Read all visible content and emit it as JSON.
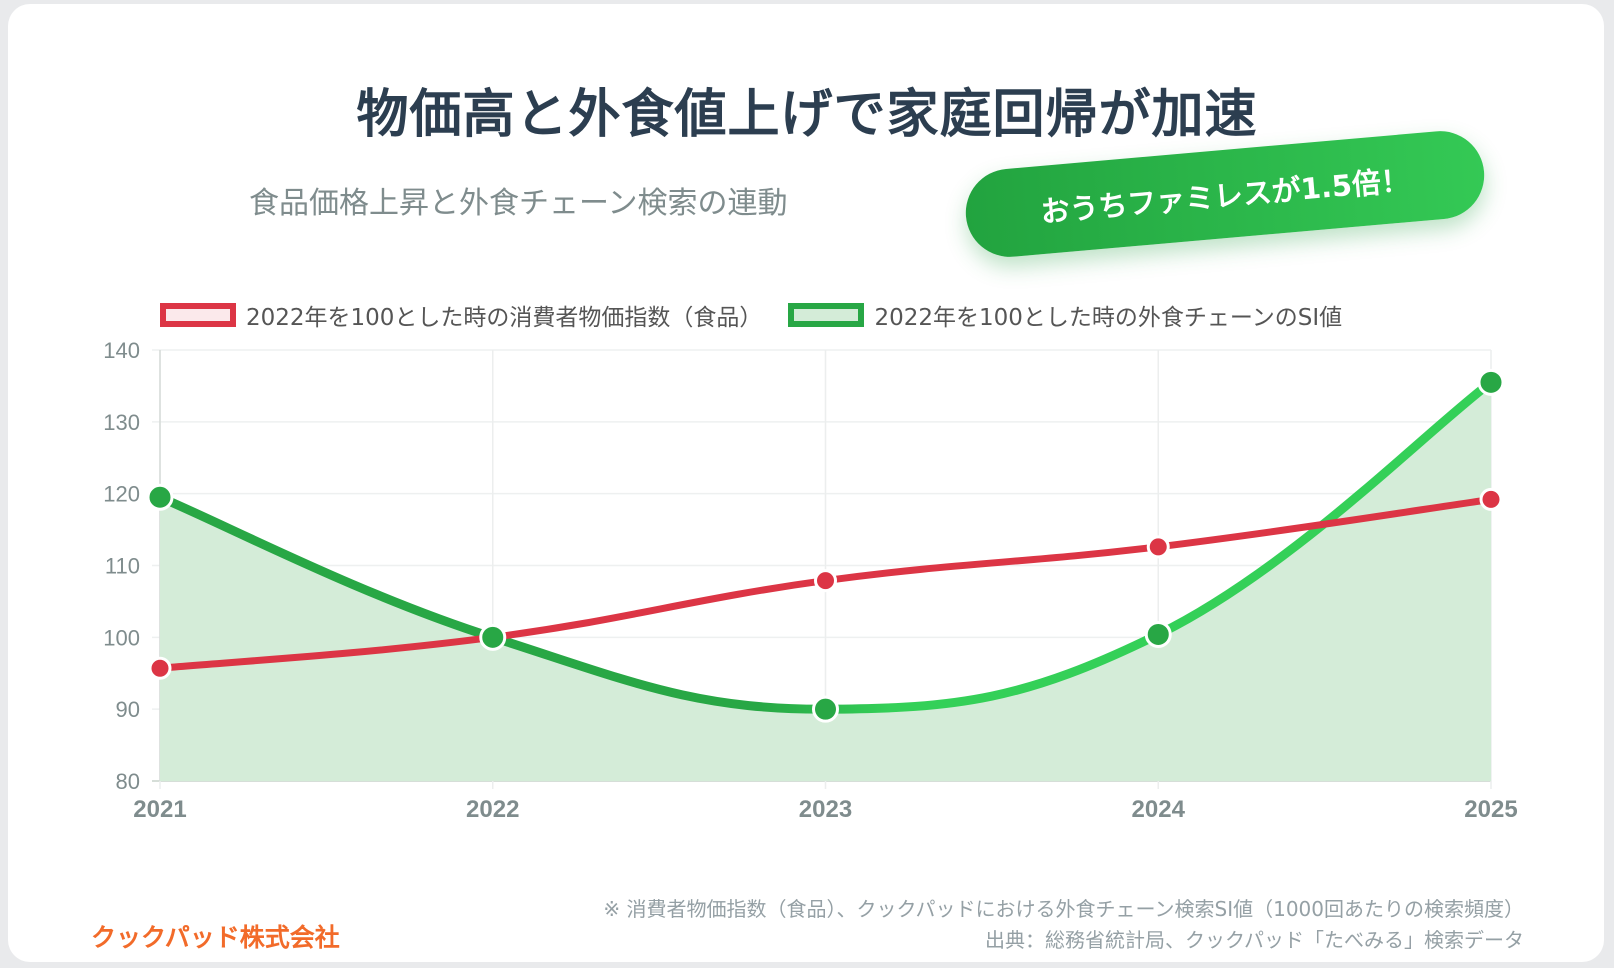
{
  "title": "物価高と外食値上げで家庭回帰が加速",
  "subtitle": "食品価格上昇と外食チェーン検索の連動",
  "badge": "おうちファミレスが1.5倍！",
  "footer": {
    "company": "クックパッド株式会社",
    "note": "※ 消費者物価指数（食品）、クックパッドにおける外食チェーン検索SI値（1000回あたりの検索頻度）",
    "source": "出典：総務省統計局、クックパッド「たべみる」検索データ"
  },
  "chart_data": {
    "type": "line",
    "categories": [
      "2021",
      "2022",
      "2023",
      "2024",
      "2025"
    ],
    "ylim": [
      80,
      140
    ],
    "yticks": [
      "80",
      "90",
      "100",
      "110",
      "120",
      "130",
      "140"
    ],
    "grid": true,
    "legend_position": "top",
    "series": [
      {
        "name": "2022年を100とした時の消費者物価指数（食品）",
        "values": [
          95.7,
          100,
          107.9,
          112.6,
          119.2
        ],
        "color": "#dc3545",
        "fill": "#fbe9eb",
        "area": false
      },
      {
        "name": "2022年を100とした時の外食チェーンのSI値",
        "values": [
          119.5,
          100,
          90,
          100.4,
          135.5
        ],
        "color": "#28a745",
        "color_end": "#34d058",
        "fill": "#d4ecd8",
        "area": true
      }
    ]
  }
}
